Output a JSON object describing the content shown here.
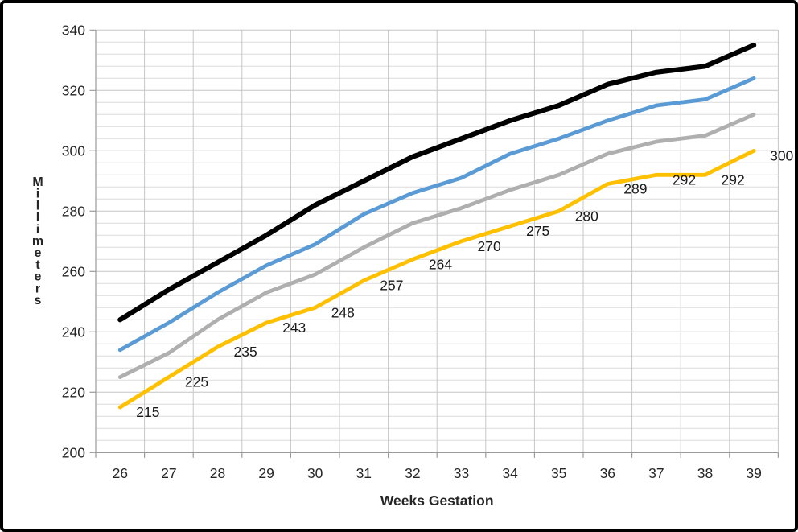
{
  "chart_data": {
    "type": "line",
    "title": "",
    "xlabel": "Weeks Gestation",
    "ylabel": "Millimeters",
    "x_categories": [
      26,
      27,
      28,
      29,
      30,
      31,
      32,
      33,
      34,
      35,
      36,
      37,
      38,
      39
    ],
    "ylim": [
      200,
      340
    ],
    "y_major_step": 20,
    "y_minor_step": 4,
    "grid": true,
    "legend_position": "none",
    "axis_color": "#9a9a9a",
    "gridline_minor_color": "#dcdcdc",
    "gridline_major_color": "#c6c6c6",
    "tick_label_color": "#262626",
    "data_label_color": "#1a1a1a",
    "series": [
      {
        "name": "upper-black",
        "color": "#000000",
        "stroke_width": 6.2,
        "values": [
          244,
          254,
          263,
          272,
          282,
          290,
          298,
          304,
          310,
          315,
          322,
          326,
          328,
          335
        ]
      },
      {
        "name": "blue",
        "color": "#5B9BD5",
        "stroke_width": 4.8,
        "values": [
          234,
          243,
          253,
          262,
          269,
          279,
          286,
          291,
          299,
          304,
          310,
          315,
          317,
          324
        ]
      },
      {
        "name": "gray",
        "color": "#AFAFAF",
        "stroke_width": 4.8,
        "values": [
          225,
          233,
          244,
          253,
          259,
          268,
          276,
          281,
          287,
          292,
          299,
          303,
          305,
          312
        ]
      },
      {
        "name": "gold",
        "color": "#FFC000",
        "stroke_width": 4.8,
        "values": [
          215,
          225,
          235,
          243,
          248,
          257,
          264,
          270,
          275,
          280,
          289,
          292,
          292,
          300
        ],
        "data_labels": [
          "215",
          "225",
          "235",
          "243",
          "248",
          "257",
          "264",
          "270",
          "275",
          "280",
          "289",
          "292",
          "292",
          "300"
        ]
      }
    ]
  }
}
